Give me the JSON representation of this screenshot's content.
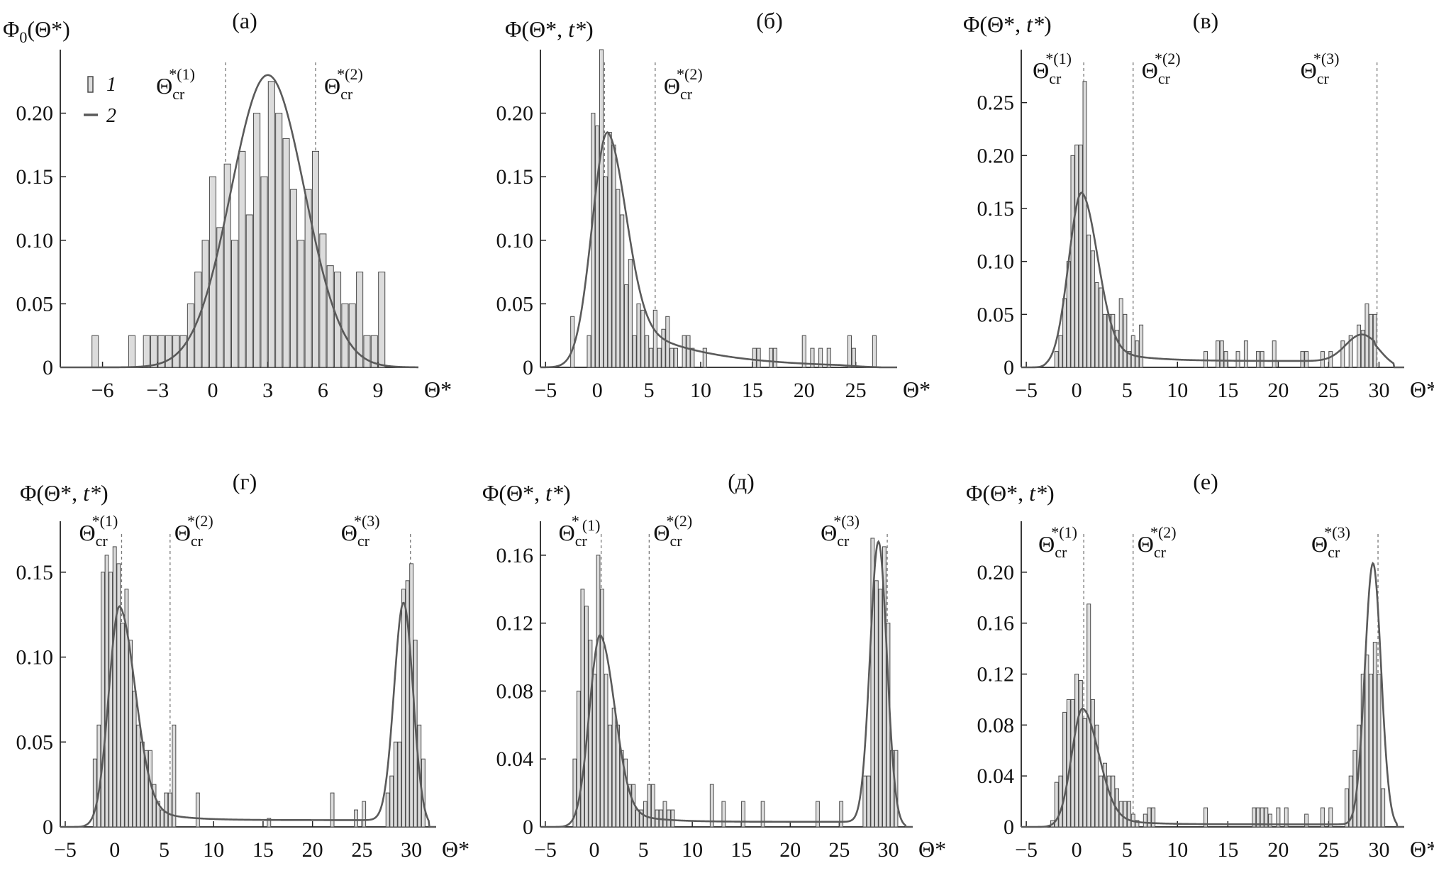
{
  "colors": {
    "bar_fill": "#dcdcdc",
    "bar_stroke": "#4a4a4a",
    "curve": "#5a5a5a",
    "vline": "#777777",
    "axis": "#222222"
  },
  "legend": {
    "bar": "1",
    "curve": "2"
  },
  "chart_data": [
    {
      "type": "bar",
      "panel": "(а)",
      "ylabel": "Φ0(Θ*)",
      "xlabel": "Θ*",
      "xlim": [
        -8.3,
        11.2
      ],
      "ylim": [
        0,
        0.25
      ],
      "xticks": [
        -6,
        -3,
        0,
        3,
        6,
        9
      ],
      "yticks": [
        0,
        0.05,
        0.1,
        0.15,
        0.2
      ],
      "ytick_labels": [
        "0",
        "0.05",
        "0.10",
        "0.15",
        "0.20"
      ],
      "vlines": [
        {
          "x": 0.7,
          "sub": "cr",
          "sup": "*(1)"
        },
        {
          "x": 5.6,
          "sub": "cr",
          "sup": "*(2)"
        }
      ],
      "bars": {
        "x": [
          -6.4,
          -4.4,
          -3.6,
          -3.2,
          -2.8,
          -2.4,
          -2.0,
          -1.6,
          -1.2,
          -0.8,
          -0.4,
          0,
          0.4,
          0.8,
          1.2,
          1.6,
          2.0,
          2.4,
          2.8,
          3.2,
          3.6,
          4.0,
          4.4,
          4.8,
          5.2,
          5.6,
          6.0,
          6.4,
          6.8,
          7.2,
          7.6,
          8.0,
          8.4,
          8.8,
          9.2
        ],
        "y": [
          0.025,
          0.025,
          0.025,
          0.025,
          0.025,
          0.025,
          0.025,
          0.025,
          0.05,
          0.075,
          0.1,
          0.15,
          0.11,
          0.16,
          0.1,
          0.17,
          0.12,
          0.2,
          0.15,
          0.225,
          0.2,
          0.18,
          0.14,
          0.1,
          0.14,
          0.17,
          0.105,
          0.08,
          0.075,
          0.05,
          0.05,
          0.075,
          0.025,
          0.025,
          0.075
        ],
        "width": 0.35
      },
      "curve": {
        "type": "gauss",
        "mu": 3.0,
        "sigma": 2.0,
        "amp": 0.23
      }
    },
    {
      "type": "bar",
      "panel": "(б)",
      "ylabel": "Φ(Θ*, t*)",
      "xlabel": "Θ*",
      "xlim": [
        -5.5,
        29
      ],
      "ylim": [
        0,
        0.25
      ],
      "xticks": [
        -5,
        0,
        5,
        10,
        15,
        20,
        25
      ],
      "yticks": [
        0,
        0.05,
        0.1,
        0.15,
        0.2
      ],
      "ytick_labels": [
        "0",
        "0.05",
        "0.10",
        "0.15",
        "0.20"
      ],
      "vlines": [
        {
          "x": 0.7,
          "label": false
        },
        {
          "x": 5.6,
          "sub": "cr",
          "sup": "*(2)"
        }
      ],
      "bars": {
        "x": [
          -2.4,
          -0.8,
          -0.4,
          0,
          0.4,
          0.8,
          1.2,
          1.6,
          2.0,
          2.4,
          2.8,
          3.2,
          3.6,
          4.0,
          4.4,
          4.8,
          5.2,
          5.6,
          6.0,
          6.4,
          6.8,
          7.2,
          7.6,
          8.4,
          8.8,
          9.2,
          10.4,
          15.2,
          15.6,
          16.8,
          17.2,
          20.0,
          20.8,
          21.6,
          22.4,
          24.4,
          24.8,
          26.8
        ],
        "y": [
          0.04,
          0.025,
          0.2,
          0.19,
          0.25,
          0.15,
          0.185,
          0.175,
          0.14,
          0.12,
          0.065,
          0.085,
          0.025,
          0.05,
          0.045,
          0.025,
          0.015,
          0.045,
          0.015,
          0.03,
          0.04,
          0.015,
          0.015,
          0.025,
          0.025,
          0.015,
          0.015,
          0.015,
          0.015,
          0.015,
          0.015,
          0.025,
          0.015,
          0.015,
          0.015,
          0.025,
          0.015,
          0.025
        ],
        "width": 0.35
      },
      "curve": {
        "type": "peaked",
        "mu": 1.0,
        "a": 0.185,
        "wl": 1.5,
        "wr": 1.8,
        "tail_a": 0.045,
        "tail_tau": 7.0,
        "tail_end": 27.5
      }
    },
    {
      "type": "bar",
      "panel": "(в)",
      "ylabel": "Φ(Θ*, t*)",
      "xlabel": "Θ*",
      "xlim": [
        -5.5,
        32.5
      ],
      "ylim": [
        0,
        0.3
      ],
      "xticks": [
        -5,
        0,
        5,
        10,
        15,
        20,
        25,
        30
      ],
      "yticks": [
        0,
        0.05,
        0.1,
        0.15,
        0.2,
        0.25
      ],
      "ytick_labels": [
        "0",
        "0.05",
        "0.10",
        "0.15",
        "0.20",
        "0.25"
      ],
      "vlines": [
        {
          "x": 0.7,
          "sub": "cr",
          "sup": "*(1)"
        },
        {
          "x": 5.6,
          "sub": "cr",
          "sup": "*(2)"
        },
        {
          "x": 29.8,
          "sub": "cr",
          "sup": "*(3)"
        }
      ],
      "bars": {
        "x": [
          -2.0,
          -1.6,
          -1.2,
          -0.8,
          -0.4,
          0,
          0.4,
          0.8,
          1.2,
          1.6,
          2.0,
          2.4,
          2.8,
          3.2,
          3.6,
          4.0,
          4.4,
          4.8,
          5.2,
          5.6,
          6.0,
          6.4,
          12.8,
          14.0,
          14.4,
          14.8,
          16.0,
          16.8,
          18.0,
          18.4,
          19.6,
          22.4,
          22.8,
          24.4,
          25.2,
          26.4,
          27.2,
          28.0,
          28.4,
          28.8,
          29.2,
          29.6
        ],
        "y": [
          0.015,
          0.03,
          0.065,
          0.1,
          0.2,
          0.21,
          0.21,
          0.27,
          0.125,
          0.11,
          0.08,
          0.075,
          0.05,
          0.05,
          0.05,
          0.035,
          0.065,
          0.05,
          0.015,
          0.03,
          0.025,
          0.04,
          0.015,
          0.025,
          0.025,
          0.015,
          0.015,
          0.025,
          0.015,
          0.015,
          0.025,
          0.015,
          0.015,
          0.015,
          0.015,
          0.025,
          0.03,
          0.04,
          0.035,
          0.06,
          0.05,
          0.05
        ],
        "width": 0.35
      },
      "curve": {
        "type": "bimodal",
        "mu1": 0.5,
        "a1": 0.165,
        "wl1": 1.3,
        "wr1": 1.6,
        "tail_a": 0.02,
        "tail_tau": 3.5,
        "floor": 0.006,
        "mu2": 28.3,
        "a2": 0.025,
        "s2": 1.6,
        "end": 31.5
      }
    },
    {
      "type": "bar",
      "panel": "(г)",
      "ylabel": "Φ(Θ*, t*)",
      "xlabel": "Θ*",
      "xlim": [
        -5.5,
        32.5
      ],
      "ylim": [
        0,
        0.18
      ],
      "xticks": [
        -5,
        0,
        5,
        10,
        15,
        20,
        25,
        30
      ],
      "yticks": [
        0,
        0.05,
        0.1,
        0.15
      ],
      "ytick_labels": [
        "0",
        "0.05",
        "0.10",
        "0.15"
      ],
      "vlines": [
        {
          "x": 0.7,
          "sub": "cr",
          "sup": "*(1)"
        },
        {
          "x": 5.6,
          "sub": "cr",
          "sup": "*(2)"
        },
        {
          "x": 29.9,
          "sub": "cr",
          "sup": "*(3)"
        }
      ],
      "bars": {
        "x": [
          -2.0,
          -1.6,
          -1.2,
          -0.8,
          -0.4,
          0,
          0.4,
          0.8,
          1.2,
          1.6,
          2.0,
          2.4,
          2.8,
          3.2,
          3.6,
          4.0,
          4.4,
          4.8,
          5.2,
          5.6,
          6.0,
          8.4,
          15.6,
          22.0,
          24.4,
          25.2,
          27.6,
          28.0,
          28.4,
          28.8,
          29.2,
          29.6,
          30.0,
          30.4,
          30.8,
          31.2
        ],
        "y": [
          0.04,
          0.06,
          0.15,
          0.16,
          0.15,
          0.165,
          0.155,
          0.12,
          0.14,
          0.11,
          0.08,
          0.06,
          0.05,
          0.045,
          0.045,
          0.025,
          0.015,
          0.01,
          0.02,
          0.02,
          0.06,
          0.02,
          0.005,
          0.02,
          0.01,
          0.015,
          0.02,
          0.03,
          0.05,
          0.05,
          0.14,
          0.145,
          0.155,
          0.11,
          0.06,
          0.04
        ],
        "width": 0.35
      },
      "curve": {
        "type": "bimodal",
        "mu1": 0.5,
        "a1": 0.13,
        "wl1": 1.1,
        "wr1": 1.6,
        "tail_a": 0.015,
        "tail_tau": 3.0,
        "floor": 0.004,
        "mu2": 29.2,
        "a2": 0.128,
        "s2": 0.95,
        "end": 31.8
      }
    },
    {
      "type": "bar",
      "panel": "(д)",
      "ylabel": "Φ(Θ*, t*)",
      "xlabel": "Θ*",
      "xlim": [
        -5.5,
        32.5
      ],
      "ylim": [
        0,
        0.18
      ],
      "xticks": [
        -5,
        0,
        5,
        10,
        15,
        20,
        25,
        30
      ],
      "yticks": [
        0,
        0.04,
        0.08,
        0.12,
        0.16
      ],
      "ytick_labels": [
        "0",
        "0.04",
        "0.08",
        "0.12",
        "0.16"
      ],
      "vlines": [
        {
          "x": 0.7,
          "sub": "cr",
          "sup": "*",
          "sup2": "(1)"
        },
        {
          "x": 5.6,
          "sub": "cr",
          "sup": "*(2)"
        },
        {
          "x": 29.9,
          "sub": "cr",
          "sup": "*(3)"
        }
      ],
      "bars": {
        "x": [
          -2.0,
          -1.6,
          -1.2,
          -0.8,
          -0.4,
          0,
          0.4,
          0.8,
          1.2,
          1.6,
          2.0,
          2.4,
          2.8,
          3.2,
          3.6,
          4.0,
          4.4,
          4.8,
          5.2,
          5.6,
          6.0,
          6.4,
          6.8,
          7.2,
          7.6,
          8.0,
          12.0,
          13.2,
          15.2,
          17.2,
          22.8,
          25.2,
          27.6,
          28.0,
          28.4,
          28.8,
          29.2,
          29.6,
          30.0,
          30.4,
          30.8
        ],
        "y": [
          0.04,
          0.08,
          0.14,
          0.13,
          0.11,
          0.09,
          0.16,
          0.14,
          0.09,
          0.06,
          0.07,
          0.06,
          0.045,
          0.04,
          0.025,
          0.025,
          0.01,
          0.01,
          0.015,
          0.025,
          0.025,
          0.01,
          0.01,
          0.015,
          0.01,
          0.01,
          0.025,
          0.015,
          0.015,
          0.015,
          0.015,
          0.015,
          0.03,
          0.03,
          0.17,
          0.145,
          0.14,
          0.165,
          0.12,
          0.045,
          0.045
        ],
        "width": 0.35
      },
      "curve": {
        "type": "bimodal",
        "mu1": 0.6,
        "a1": 0.113,
        "wl1": 1.1,
        "wr1": 1.5,
        "tail_a": 0.012,
        "tail_tau": 3.0,
        "floor": 0.003,
        "mu2": 29.0,
        "a2": 0.165,
        "s2": 0.85,
        "end": 31.8
      }
    },
    {
      "type": "bar",
      "panel": "(е)",
      "ylabel": "Φ(Θ*, t*)",
      "xlabel": "Θ*",
      "xlim": [
        -5.5,
        32.5
      ],
      "ylim": [
        0,
        0.24
      ],
      "xticks": [
        -5,
        0,
        5,
        10,
        15,
        20,
        25,
        30
      ],
      "yticks": [
        0,
        0.04,
        0.08,
        0.12,
        0.16,
        0.2
      ],
      "ytick_labels": [
        "0",
        "0.04",
        "0.08",
        "0.12",
        "0.16",
        "0.20"
      ],
      "vlines": [
        {
          "x": 0.7,
          "sub": "cr",
          "sup": "*(1)"
        },
        {
          "x": 5.6,
          "sub": "cr",
          "sup": "*(2)"
        },
        {
          "x": 29.9,
          "sub": "cr",
          "sup": "*(3)"
        }
      ],
      "bars": {
        "x": [
          -2.4,
          -2.0,
          -1.6,
          -1.2,
          -0.8,
          -0.4,
          0,
          0.4,
          0.8,
          1.2,
          1.6,
          2.0,
          2.4,
          2.8,
          3.2,
          3.6,
          4.0,
          4.4,
          4.8,
          5.2,
          5.6,
          6.0,
          6.8,
          7.2,
          7.6,
          12.8,
          17.6,
          18.0,
          18.4,
          18.8,
          19.2,
          20.0,
          20.8,
          22.8,
          24.4,
          25.2,
          26.8,
          27.2,
          27.6,
          28.0,
          28.4,
          28.8,
          29.2,
          29.6,
          30.0,
          30.4
        ],
        "y": [
          0.005,
          0.035,
          0.04,
          0.09,
          0.1,
          0.1,
          0.12,
          0.115,
          0.085,
          0.175,
          0.1,
          0.08,
          0.04,
          0.05,
          0.04,
          0.04,
          0.03,
          0.02,
          0.02,
          0.02,
          0.01,
          0.005,
          0.01,
          0.015,
          0.015,
          0.015,
          0.015,
          0.015,
          0.015,
          0.015,
          0.01,
          0.015,
          0.015,
          0.01,
          0.015,
          0.015,
          0.03,
          0.04,
          0.06,
          0.08,
          0.12,
          0.135,
          0.12,
          0.145,
          0.12,
          0.03
        ],
        "width": 0.35
      },
      "curve": {
        "type": "bimodal",
        "mu1": 0.6,
        "a1": 0.093,
        "wl1": 1.1,
        "wr1": 1.6,
        "tail_a": 0.01,
        "tail_tau": 3.0,
        "floor": 0.002,
        "mu2": 29.4,
        "a2": 0.205,
        "s2": 0.8,
        "end": 31.8
      }
    }
  ]
}
